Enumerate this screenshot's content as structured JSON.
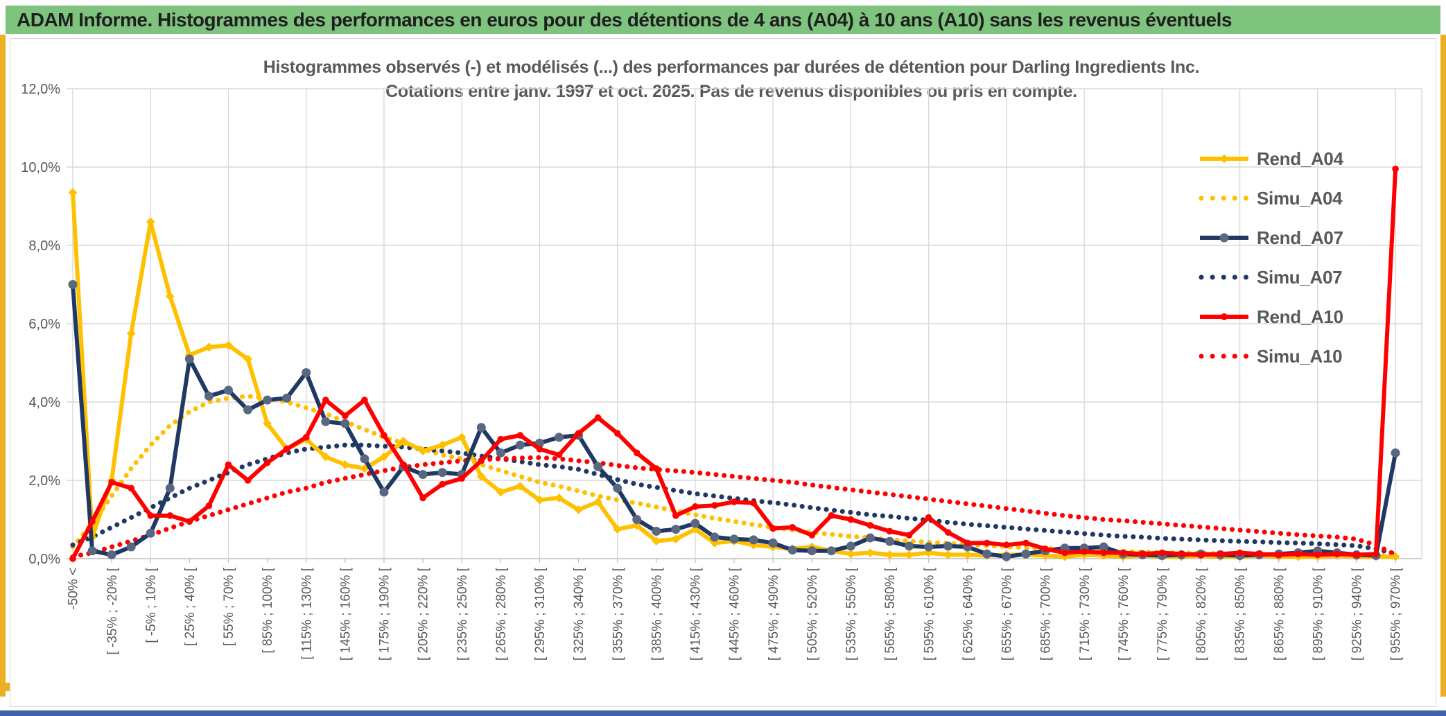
{
  "window": {
    "header_title": "ADAM Informe. Histogrammes des performances en euros pour des détentions de 4 ans (A04) à 10 ans (A10) sans les revenus éventuels",
    "header_bg": "#7ec47f",
    "frame_color": "#edb022",
    "bottom_bar_color": "#3d64a8"
  },
  "chart_data": {
    "type": "line",
    "title": "Histogrammes observés (-) et modélisés (...) des performances par durées de détention pour Darling Ingredients Inc.",
    "subtitle": "Cotations entre janv. 1997 et oct. 2025. Pas de revenus disponibles ou pris en compte.",
    "grid": true,
    "legend_position": "right-inside",
    "y_axis": {
      "min": 0,
      "max": 12,
      "tick_step": 2,
      "tick_labels": [
        "0,0%",
        "2,0%",
        "4,0%",
        "6,0%",
        "8,0%",
        "10,0%",
        "12,0%"
      ]
    },
    "x_axis": {
      "n_bins": 69,
      "label_interval": 2,
      "visible_labels": [
        "-50% <",
        "[ -35% ; -20% [",
        "[ -5% ; 10% [",
        "[ 25% ; 40% [",
        "[ 55% ; 70% [",
        "[ 85% ; 100% [",
        "[ 115% ; 130% [",
        "[ 145% ; 160% [",
        "[ 175% ; 190% [",
        "[ 205% ; 220% [",
        "[ 235% ; 250% [",
        "[ 265% ; 280% [",
        "[ 295% ; 310% [",
        "[ 325% ; 340% [",
        "[ 355% ; 370% [",
        "[ 385% ; 400% [",
        "[ 415% ; 430% [",
        "[ 445% ; 460% [",
        "[ 475% ; 490% [",
        "[ 505% ; 520% [",
        "[ 535% ; 550% [",
        "[ 565% ; 580% [",
        "[ 595% ; 610% [",
        "[ 625% ; 640% [",
        "[ 655% ; 670% [",
        "[ 685% ; 700% [",
        "[ 715% ; 730% [",
        "[ 745% ; 760% [",
        "[ 775% ; 790% [",
        "[ 805% ; 820% [",
        "[ 835% ; 850% [",
        "[ 865% ; 880% [",
        "[ 895% ; 910% [",
        "[ 925% ; 940% [",
        "[ 955% ; 970% ["
      ]
    },
    "series": [
      {
        "name": "Simu_A04",
        "color": "#FFC000",
        "style": "dotted",
        "marker": "none",
        "values": [
          0.3,
          0.9,
          1.6,
          2.3,
          2.9,
          3.4,
          3.75,
          4.0,
          4.1,
          4.15,
          4.1,
          4.0,
          3.85,
          3.7,
          3.5,
          3.3,
          3.1,
          2.95,
          2.8,
          2.65,
          2.55,
          2.4,
          2.25,
          2.1,
          1.95,
          1.85,
          1.73,
          1.6,
          1.5,
          1.42,
          1.32,
          1.22,
          1.12,
          1.03,
          0.95,
          0.87,
          0.8,
          0.73,
          0.67,
          0.62,
          0.57,
          0.53,
          0.49,
          0.45,
          0.42,
          0.39,
          0.36,
          0.33,
          0.31,
          0.28,
          0.26,
          0.24,
          0.22,
          0.2,
          0.19,
          0.17,
          0.16,
          0.15,
          0.14,
          0.13,
          0.12,
          0.11,
          0.1,
          0.1,
          0.09,
          0.09,
          0.08,
          0.08,
          0.07
        ]
      },
      {
        "name": "Simu_A07",
        "color": "#1F3864",
        "style": "dotted",
        "marker": "none",
        "values": [
          0.35,
          0.55,
          0.8,
          1.05,
          1.3,
          1.55,
          1.8,
          2.0,
          2.2,
          2.4,
          2.55,
          2.7,
          2.8,
          2.85,
          2.9,
          2.9,
          2.87,
          2.85,
          2.8,
          2.75,
          2.7,
          2.62,
          2.55,
          2.48,
          2.4,
          2.35,
          2.28,
          2.15,
          2.02,
          1.9,
          1.82,
          1.74,
          1.66,
          1.6,
          1.54,
          1.48,
          1.43,
          1.37,
          1.3,
          1.24,
          1.18,
          1.12,
          1.08,
          1.03,
          0.98,
          0.93,
          0.88,
          0.84,
          0.8,
          0.76,
          0.72,
          0.68,
          0.64,
          0.6,
          0.57,
          0.55,
          0.52,
          0.5,
          0.48,
          0.46,
          0.44,
          0.43,
          0.41,
          0.4,
          0.38,
          0.36,
          0.33,
          0.25,
          0.12
        ]
      },
      {
        "name": "Simu_A10",
        "color": "#FF0000",
        "style": "dotted",
        "marker": "none",
        "values": [
          0.05,
          0.15,
          0.3,
          0.45,
          0.6,
          0.78,
          0.95,
          1.1,
          1.25,
          1.4,
          1.55,
          1.7,
          1.8,
          1.95,
          2.05,
          2.15,
          2.25,
          2.33,
          2.4,
          2.45,
          2.5,
          2.53,
          2.55,
          2.57,
          2.58,
          2.55,
          2.5,
          2.45,
          2.38,
          2.32,
          2.28,
          2.24,
          2.2,
          2.15,
          2.1,
          2.05,
          2.0,
          1.95,
          1.88,
          1.82,
          1.76,
          1.7,
          1.64,
          1.58,
          1.52,
          1.46,
          1.4,
          1.34,
          1.28,
          1.22,
          1.16,
          1.1,
          1.05,
          1.0,
          0.97,
          0.93,
          0.89,
          0.85,
          0.81,
          0.77,
          0.73,
          0.69,
          0.65,
          0.61,
          0.58,
          0.55,
          0.5,
          0.35,
          0.1
        ]
      },
      {
        "name": "Rend_A04",
        "color": "#FFC000",
        "style": "solid",
        "marker": "diamond",
        "marker_color": "#FFC000",
        "values": [
          9.35,
          0.55,
          2.0,
          5.75,
          8.6,
          6.7,
          5.2,
          5.4,
          5.45,
          5.1,
          3.45,
          2.8,
          3.05,
          2.6,
          2.4,
          2.3,
          2.6,
          3.0,
          2.75,
          2.9,
          3.1,
          2.1,
          1.7,
          1.85,
          1.5,
          1.55,
          1.25,
          1.45,
          0.75,
          0.85,
          0.45,
          0.5,
          0.75,
          0.4,
          0.45,
          0.35,
          0.3,
          0.25,
          0.3,
          0.2,
          0.12,
          0.15,
          0.1,
          0.1,
          0.15,
          0.1,
          0.1,
          0.08,
          0.1,
          0.1,
          0.08,
          0.05,
          0.1,
          0.08,
          0.05,
          0.08,
          0.05,
          0.05,
          0.08,
          0.05,
          0.05,
          0.08,
          0.05,
          0.05,
          0.05,
          0.08,
          0.05,
          0.05,
          0.05
        ]
      },
      {
        "name": "Rend_A07",
        "color": "#1F3864",
        "style": "solid",
        "marker": "circle",
        "marker_color": "#5A6780",
        "values": [
          7.0,
          0.2,
          0.1,
          0.3,
          0.65,
          1.8,
          5.1,
          4.15,
          4.3,
          3.8,
          4.05,
          4.1,
          4.75,
          3.5,
          3.45,
          2.55,
          1.7,
          2.35,
          2.15,
          2.2,
          2.15,
          3.35,
          2.7,
          2.9,
          2.95,
          3.1,
          3.15,
          2.35,
          1.8,
          1.0,
          0.7,
          0.75,
          0.9,
          0.55,
          0.5,
          0.48,
          0.4,
          0.22,
          0.2,
          0.2,
          0.32,
          0.53,
          0.44,
          0.32,
          0.3,
          0.32,
          0.3,
          0.12,
          0.05,
          0.12,
          0.2,
          0.27,
          0.27,
          0.3,
          0.12,
          0.1,
          0.08,
          0.1,
          0.12,
          0.1,
          0.08,
          0.1,
          0.12,
          0.15,
          0.2,
          0.15,
          0.1,
          0.08,
          2.7
        ]
      },
      {
        "name": "Rend_A10",
        "color": "#FF0000",
        "style": "solid",
        "marker": "circle",
        "marker_color": "#FF0000",
        "values": [
          0.0,
          0.95,
          1.95,
          1.8,
          1.1,
          1.1,
          0.95,
          1.35,
          2.4,
          2.0,
          2.45,
          2.8,
          3.1,
          4.05,
          3.65,
          4.05,
          3.15,
          2.4,
          1.55,
          1.9,
          2.05,
          2.5,
          3.05,
          3.15,
          2.8,
          2.65,
          3.2,
          3.6,
          3.2,
          2.7,
          2.3,
          1.1,
          1.33,
          1.36,
          1.45,
          1.42,
          0.77,
          0.8,
          0.6,
          1.1,
          1.0,
          0.85,
          0.7,
          0.6,
          1.05,
          0.67,
          0.4,
          0.4,
          0.35,
          0.4,
          0.25,
          0.15,
          0.18,
          0.15,
          0.15,
          0.12,
          0.15,
          0.12,
          0.1,
          0.12,
          0.15,
          0.12,
          0.1,
          0.12,
          0.1,
          0.12,
          0.1,
          0.12,
          9.95
        ]
      }
    ],
    "legend_entries": [
      "Rend_A04",
      "Simu_A04",
      "Rend_A07",
      "Simu_A07",
      "Rend_A10",
      "Simu_A10"
    ]
  }
}
